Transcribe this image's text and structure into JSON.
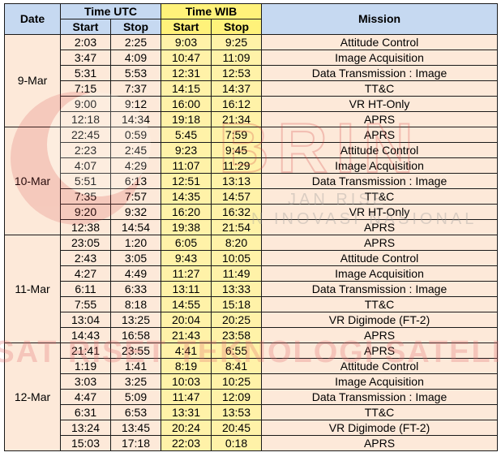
{
  "header": {
    "date": "Date",
    "time_utc": "Time UTC",
    "time_wib": "Time WIB",
    "mission": "Mission",
    "start": "Start",
    "stop": "Stop"
  },
  "watermark": {
    "logo_text": "BRIN",
    "tagline_1": "JAN RISE",
    "tagline_2": "N INOVASI NASIONAL",
    "bottom_text": "PUSAT RISET TEKNOLOGI SATELIT"
  },
  "days": [
    {
      "date": "9-Mar",
      "rows": [
        {
          "utc_start": "2:03",
          "utc_stop": "2:25",
          "wib_start": "9:03",
          "wib_stop": "9:25",
          "mission": "Attitude Control"
        },
        {
          "utc_start": "3:47",
          "utc_stop": "4:09",
          "wib_start": "10:47",
          "wib_stop": "11:09",
          "mission": "Image Acquisition"
        },
        {
          "utc_start": "5:31",
          "utc_stop": "5:53",
          "wib_start": "12:31",
          "wib_stop": "12:53",
          "mission": "Data Transmission : Image"
        },
        {
          "utc_start": "7:15",
          "utc_stop": "7:37",
          "wib_start": "14:15",
          "wib_stop": "14:37",
          "mission": "TT&C"
        },
        {
          "utc_start": "9:00",
          "utc_stop": "9:12",
          "wib_start": "16:00",
          "wib_stop": "16:12",
          "mission": "VR HT-Only"
        },
        {
          "utc_start": "12:18",
          "utc_stop": "14:34",
          "wib_start": "19:18",
          "wib_stop": "21:34",
          "mission": "APRS"
        }
      ]
    },
    {
      "date": "10-Mar",
      "rows": [
        {
          "utc_start": "22:45",
          "utc_stop": "0:59",
          "wib_start": "5:45",
          "wib_stop": "7:59",
          "mission": "APRS"
        },
        {
          "utc_start": "2:23",
          "utc_stop": "2:45",
          "wib_start": "9:23",
          "wib_stop": "9:45",
          "mission": "Attitude Control"
        },
        {
          "utc_start": "4:07",
          "utc_stop": "4:29",
          "wib_start": "11:07",
          "wib_stop": "11:29",
          "mission": "Image Acquisition"
        },
        {
          "utc_start": "5:51",
          "utc_stop": "6:13",
          "wib_start": "12:51",
          "wib_stop": "13:13",
          "mission": "Data Transmission : Image"
        },
        {
          "utc_start": "7:35",
          "utc_stop": "7:57",
          "wib_start": "14:35",
          "wib_stop": "14:57",
          "mission": "TT&C"
        },
        {
          "utc_start": "9:20",
          "utc_stop": "9:32",
          "wib_start": "16:20",
          "wib_stop": "16:32",
          "mission": "VR HT-Only"
        },
        {
          "utc_start": "12:38",
          "utc_stop": "14:54",
          "wib_start": "19:38",
          "wib_stop": "21:54",
          "mission": "APRS"
        }
      ]
    },
    {
      "date": "11-Mar",
      "rows": [
        {
          "utc_start": "23:05",
          "utc_stop": "1:20",
          "wib_start": "6:05",
          "wib_stop": "8:20",
          "mission": "APRS"
        },
        {
          "utc_start": "2:43",
          "utc_stop": "3:05",
          "wib_start": "9:43",
          "wib_stop": "10:05",
          "mission": "Attitude Control"
        },
        {
          "utc_start": "4:27",
          "utc_stop": "4:49",
          "wib_start": "11:27",
          "wib_stop": "11:49",
          "mission": "Image Acquisition"
        },
        {
          "utc_start": "6:11",
          "utc_stop": "6:33",
          "wib_start": "13:11",
          "wib_stop": "13:33",
          "mission": "Data Transmission : Image"
        },
        {
          "utc_start": "7:55",
          "utc_stop": "8:18",
          "wib_start": "14:55",
          "wib_stop": "15:18",
          "mission": "TT&C"
        },
        {
          "utc_start": "13:04",
          "utc_stop": "13:25",
          "wib_start": "20:04",
          "wib_stop": "20:25",
          "mission": "VR Digimode (FT-2)"
        },
        {
          "utc_start": "14:43",
          "utc_stop": "16:58",
          "wib_start": "21:43",
          "wib_stop": "23:58",
          "mission": "APRS"
        }
      ]
    },
    {
      "date": "12-Mar",
      "rows": [
        {
          "utc_start": "21:41",
          "utc_stop": "23:55",
          "wib_start": "4:41",
          "wib_stop": "6:55",
          "mission": "APRS"
        },
        {
          "utc_start": "1:19",
          "utc_stop": "1:41",
          "wib_start": "8:19",
          "wib_stop": "8:41",
          "mission": "Attitude Control"
        },
        {
          "utc_start": "3:03",
          "utc_stop": "3:25",
          "wib_start": "10:03",
          "wib_stop": "10:25",
          "mission": "Image Acquisition"
        },
        {
          "utc_start": "4:47",
          "utc_stop": "5:09",
          "wib_start": "11:47",
          "wib_stop": "12:09",
          "mission": "Data Transmission : Image"
        },
        {
          "utc_start": "6:31",
          "utc_stop": "6:53",
          "wib_start": "13:31",
          "wib_stop": "13:53",
          "mission": "TT&C"
        },
        {
          "utc_start": "13:24",
          "utc_stop": "13:45",
          "wib_start": "20:24",
          "wib_stop": "20:45",
          "mission": "VR Digimode (FT-2)"
        },
        {
          "utc_start": "15:03",
          "utc_stop": "17:18",
          "wib_start": "22:03",
          "wib_stop": "0:18",
          "mission": "APRS"
        }
      ]
    }
  ],
  "colors": {
    "header_blue": "#c6d9f1",
    "header_yellow": "#fff27a",
    "utc_cell": "#fde9d9",
    "wib_cell": "#fff2a8",
    "watermark_red": "#e8a0a0"
  }
}
